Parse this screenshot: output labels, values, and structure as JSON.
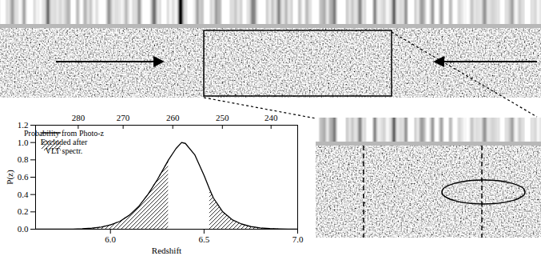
{
  "chart_data": {
    "type": "line",
    "xlabel": "Redshift",
    "ylabel": "P(z)",
    "xlim": [
      5.6,
      7
    ],
    "ylim": [
      0,
      1.2
    ],
    "xticks": [
      6,
      6.5,
      7
    ],
    "yticks": [
      0,
      0.2,
      0.4,
      0.6,
      0.8,
      1,
      1.2
    ],
    "x": [
      5.6,
      5.7,
      5.8,
      5.85,
      5.9,
      5.95,
      6.0,
      6.05,
      6.1,
      6.15,
      6.2,
      6.25,
      6.3,
      6.31,
      6.35,
      6.38,
      6.4,
      6.45,
      6.5,
      6.53,
      6.55,
      6.6,
      6.65,
      6.7,
      6.75,
      6.8,
      6.85,
      6.9,
      6.95,
      7.0
    ],
    "series": [
      {
        "name": "Probability from Photo-z",
        "color": "#000000",
        "values": [
          0,
          0,
          0.002,
          0.005,
          0.012,
          0.025,
          0.05,
          0.09,
          0.16,
          0.26,
          0.4,
          0.57,
          0.76,
          0.8,
          0.93,
          1.0,
          0.99,
          0.86,
          0.62,
          0.46,
          0.36,
          0.2,
          0.11,
          0.06,
          0.03,
          0.015,
          0.007,
          0.003,
          0.001,
          0
        ]
      }
    ],
    "excluded": {
      "name": "Excluded after VLT spectr.",
      "ranges": [
        [
          5.9,
          6.31
        ],
        [
          6.53,
          6.9
        ]
      ]
    },
    "top_axis_ticks": [
      {
        "value": 5.83,
        "label": "280"
      },
      {
        "value": 6.07,
        "label": "270"
      },
      {
        "value": 6.335,
        "label": "260"
      },
      {
        "value": 6.6,
        "label": "250"
      },
      {
        "value": 6.86,
        "label": "240"
      }
    ]
  }
}
